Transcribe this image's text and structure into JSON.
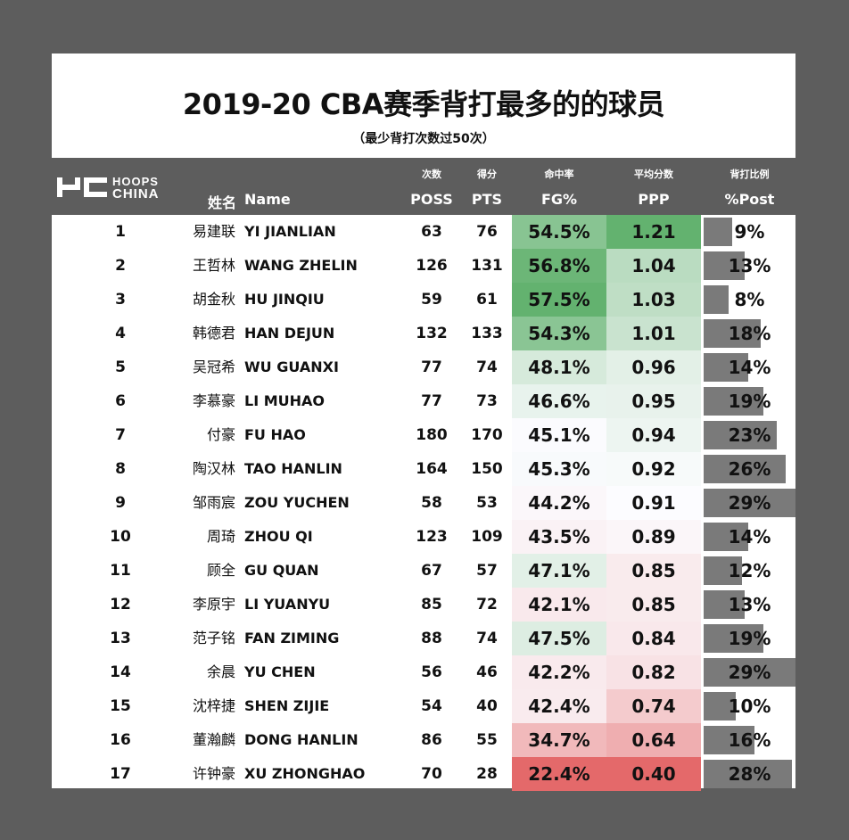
{
  "title": "2019-20 CBA赛季背打最多的的球员",
  "subtitle": "（最少背打次数过50次）",
  "logo": {
    "line1": "HOOPS",
    "line2": "CHINA",
    "mark": "HC"
  },
  "headers": {
    "name_zh": "姓名",
    "name_en": "Name",
    "poss_zh": "次数",
    "poss_en": "POSS",
    "pts_zh": "得分",
    "pts_en": "PTS",
    "fg_zh": "命中率",
    "fg_en": "FG%",
    "ppp_zh": "平均分数",
    "ppp_en": "PPP",
    "post_zh": "背打比例",
    "post_en": "%Post"
  },
  "colors": {
    "background": "#5d5d5d",
    "green_scale": "#63b26f",
    "red_scale": "#e4696a",
    "post_bar": "#7a7a7a"
  },
  "rows": [
    {
      "rank": "1",
      "zh": "易建联",
      "en": "YI JIANLIAN",
      "poss": "63",
      "pts": "76",
      "fg": "54.5%",
      "ppp": "1.21",
      "post": "9%",
      "post_value": 9
    },
    {
      "rank": "2",
      "zh": "王哲林",
      "en": "WANG ZHELIN",
      "poss": "126",
      "pts": "131",
      "fg": "56.8%",
      "ppp": "1.04",
      "post": "13%",
      "post_value": 13
    },
    {
      "rank": "3",
      "zh": "胡金秋",
      "en": "HU JINQIU",
      "poss": "59",
      "pts": "61",
      "fg": "57.5%",
      "ppp": "1.03",
      "post": "8%",
      "post_value": 8
    },
    {
      "rank": "4",
      "zh": "韩德君",
      "en": "HAN DEJUN",
      "poss": "132",
      "pts": "133",
      "fg": "54.3%",
      "ppp": "1.01",
      "post": "18%",
      "post_value": 18
    },
    {
      "rank": "5",
      "zh": "吴冠希",
      "en": "WU GUANXI",
      "poss": "77",
      "pts": "74",
      "fg": "48.1%",
      "ppp": "0.96",
      "post": "14%",
      "post_value": 14
    },
    {
      "rank": "6",
      "zh": "李慕豪",
      "en": "LI MUHAO",
      "poss": "77",
      "pts": "73",
      "fg": "46.6%",
      "ppp": "0.95",
      "post": "19%",
      "post_value": 19
    },
    {
      "rank": "7",
      "zh": "付豪",
      "en": "FU HAO",
      "poss": "180",
      "pts": "170",
      "fg": "45.1%",
      "ppp": "0.94",
      "post": "23%",
      "post_value": 23
    },
    {
      "rank": "8",
      "zh": "陶汉林",
      "en": "TAO HANLIN",
      "poss": "164",
      "pts": "150",
      "fg": "45.3%",
      "ppp": "0.92",
      "post": "26%",
      "post_value": 26
    },
    {
      "rank": "9",
      "zh": "邹雨宸",
      "en": "ZOU YUCHEN",
      "poss": "58",
      "pts": "53",
      "fg": "44.2%",
      "ppp": "0.91",
      "post": "29%",
      "post_value": 29
    },
    {
      "rank": "10",
      "zh": "周琦",
      "en": "ZHOU QI",
      "poss": "123",
      "pts": "109",
      "fg": "43.5%",
      "ppp": "0.89",
      "post": "14%",
      "post_value": 14
    },
    {
      "rank": "11",
      "zh": "顾全",
      "en": "GU QUAN",
      "poss": "67",
      "pts": "57",
      "fg": "47.1%",
      "ppp": "0.85",
      "post": "12%",
      "post_value": 12
    },
    {
      "rank": "12",
      "zh": "李原宇",
      "en": "LI YUANYU",
      "poss": "85",
      "pts": "72",
      "fg": "42.1%",
      "ppp": "0.85",
      "post": "13%",
      "post_value": 13
    },
    {
      "rank": "13",
      "zh": "范子铭",
      "en": "FAN ZIMING",
      "poss": "88",
      "pts": "74",
      "fg": "47.5%",
      "ppp": "0.84",
      "post": "19%",
      "post_value": 19
    },
    {
      "rank": "14",
      "zh": "余晨",
      "en": "YU CHEN",
      "poss": "56",
      "pts": "46",
      "fg": "42.2%",
      "ppp": "0.82",
      "post": "29%",
      "post_value": 29
    },
    {
      "rank": "15",
      "zh": "沈梓捷",
      "en": "SHEN ZIJIE",
      "poss": "54",
      "pts": "40",
      "fg": "42.4%",
      "ppp": "0.74",
      "post": "10%",
      "post_value": 10
    },
    {
      "rank": "16",
      "zh": "董瀚麟",
      "en": "DONG HANLIN",
      "poss": "86",
      "pts": "55",
      "fg": "34.7%",
      "ppp": "0.64",
      "post": "16%",
      "post_value": 16
    },
    {
      "rank": "17",
      "zh": "许钟豪",
      "en": "XU ZHONGHAO",
      "poss": "70",
      "pts": "28",
      "fg": "22.4%",
      "ppp": "0.40",
      "post": "28%",
      "post_value": 28
    }
  ]
}
